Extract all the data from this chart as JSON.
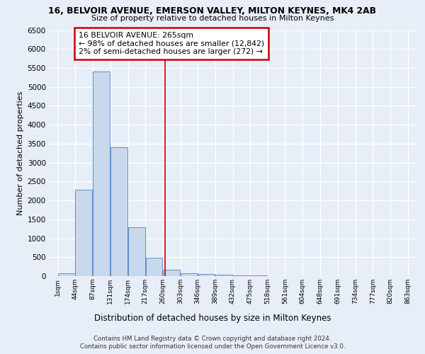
{
  "title": "16, BELVOIR AVENUE, EMERSON VALLEY, MILTON KEYNES, MK4 2AB",
  "subtitle": "Size of property relative to detached houses in Milton Keynes",
  "xlabel": "Distribution of detached houses by size in Milton Keynes",
  "ylabel": "Number of detached properties",
  "footer_line1": "Contains HM Land Registry data © Crown copyright and database right 2024.",
  "footer_line2": "Contains public sector information licensed under the Open Government Licence v3.0.",
  "bin_edges": [
    1,
    44,
    87,
    131,
    174,
    217,
    260,
    303,
    346,
    389,
    432,
    475,
    518,
    561,
    604,
    648,
    691,
    734,
    777,
    820,
    863
  ],
  "bar_values": [
    75,
    2275,
    5400,
    3400,
    1300,
    480,
    160,
    75,
    50,
    30,
    15,
    10,
    5,
    3,
    2,
    1,
    1,
    0,
    0,
    0
  ],
  "bar_color": "#c8d9ee",
  "bar_edge_color": "#5b8fc9",
  "ylim_max": 6500,
  "yticks": [
    0,
    500,
    1000,
    1500,
    2000,
    2500,
    3000,
    3500,
    4000,
    4500,
    5000,
    5500,
    6000,
    6500
  ],
  "property_size": 265,
  "vline_color": "#cc0000",
  "annotation_title": "16 BELVOIR AVENUE: 265sqm",
  "annotation_line1": "← 98% of detached houses are smaller (12,842)",
  "annotation_line2": "2% of semi-detached houses are larger (272) →",
  "annotation_box_edgecolor": "#cc0000",
  "bg_color": "#e8eef8",
  "grid_color": "#ffffff"
}
